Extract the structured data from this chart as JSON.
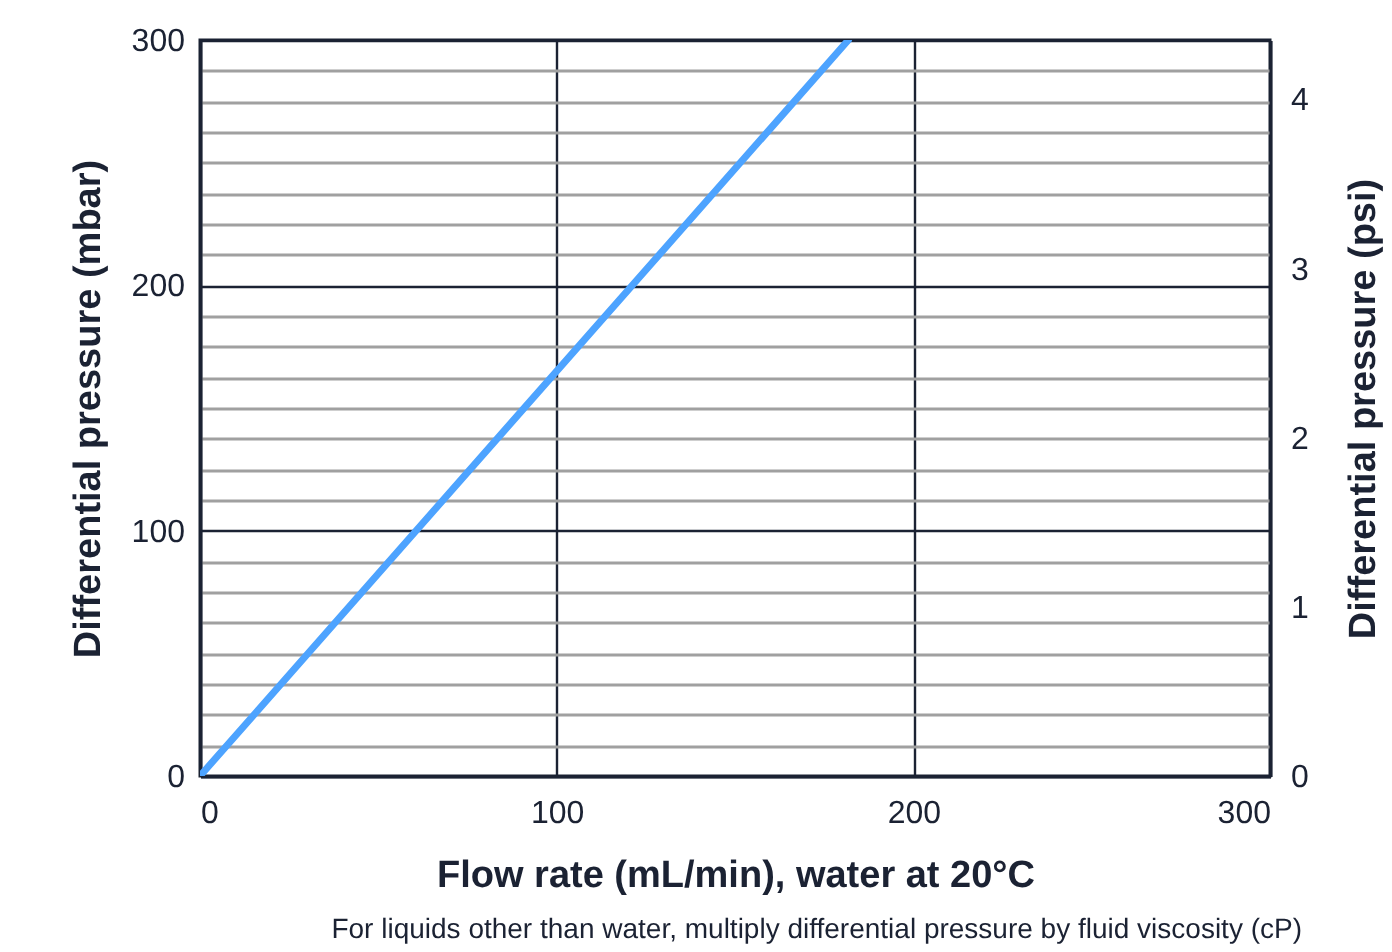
{
  "chart_data": {
    "type": "line",
    "xlabel": "Flow rate (mL/min), water at 20°C",
    "ylabel": "Differential pressure (mbar)",
    "y2label": "Differential pressure (psi)",
    "annotations": [
      "For liquids other than water, multiply differential pressure by fluid viscosity (cP)"
    ],
    "series": [
      {
        "x": [
          0,
          181.8
        ],
        "values": [
          0,
          300
        ],
        "color": "#4da3ff"
      }
    ],
    "xlim": [
      0,
      300
    ],
    "xticks": [
      0,
      100,
      200,
      300
    ],
    "ylim": [
      0,
      300
    ],
    "yticks": [
      0,
      {
        "value": 12.5,
        "label": null
      },
      {
        "value": 25,
        "label": null
      },
      {
        "value": 37.5,
        "label": null
      },
      {
        "value": 50,
        "label": null
      },
      {
        "value": 62.5,
        "label": null
      },
      {
        "value": 75,
        "label": null
      },
      {
        "value": 87.5,
        "label": null
      },
      100,
      {
        "value": 112.5,
        "label": null
      },
      {
        "value": 125,
        "label": null
      },
      {
        "value": 137.5,
        "label": null
      },
      {
        "value": 150,
        "label": null
      },
      {
        "value": 162.5,
        "label": null
      },
      {
        "value": 175,
        "label": null
      },
      {
        "value": 187.5,
        "label": null
      },
      200,
      {
        "value": 212.5,
        "label": null
      },
      {
        "value": 225,
        "label": null
      },
      {
        "value": 237.5,
        "label": null
      },
      {
        "value": 250,
        "label": null
      },
      {
        "value": 262.5,
        "label": null
      },
      {
        "value": 275,
        "label": null
      },
      {
        "value": 287.5,
        "label": null
      },
      300
    ],
    "y2lim": [
      0,
      4.351
    ],
    "y2ticks": [
      0,
      1,
      2,
      3,
      4
    ],
    "grid": true,
    "line_style": "solid",
    "marker": "none"
  }
}
